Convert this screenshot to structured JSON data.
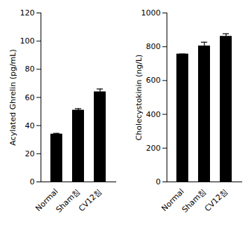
{
  "chart_data": [
    {
      "type": "bar",
      "categories": [
        "Normal",
        "Sham침",
        "CV12침"
      ],
      "values": [
        34,
        51,
        64
      ],
      "errors": [
        0.5,
        1,
        2
      ],
      "color": "#000000",
      "y_label": "Acylated Ghrelin (pg/mL)",
      "ylim": [
        0,
        120
      ],
      "yticks": [
        0,
        20,
        40,
        60,
        80,
        100,
        120
      ],
      "grid": false
    },
    {
      "type": "bar",
      "categories": [
        "Normal",
        "Sham침",
        "CV12침"
      ],
      "values": [
        757,
        805,
        862
      ],
      "errors": [
        0,
        22,
        15
      ],
      "color": "#000000",
      "y_label": "Cholecystokinin (ng/L)",
      "ylim": [
        0,
        1000
      ],
      "yticks": [
        0,
        200,
        400,
        600,
        800,
        1000
      ],
      "grid": false
    }
  ]
}
